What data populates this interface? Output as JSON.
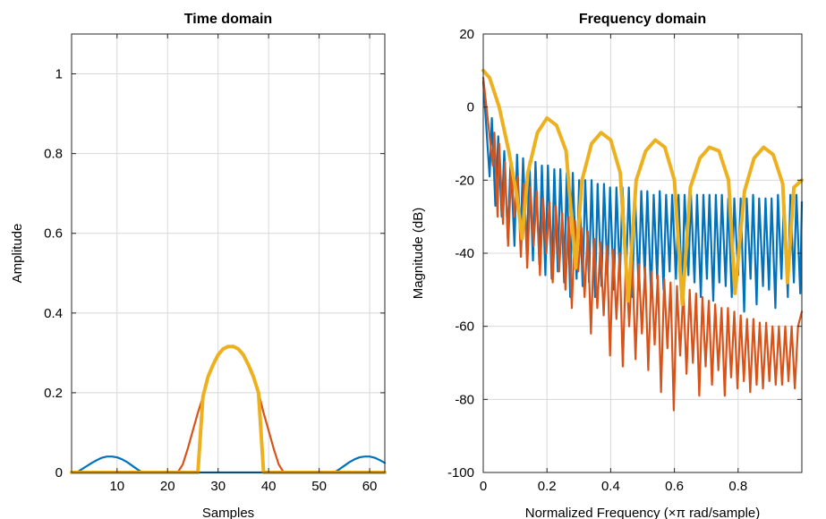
{
  "chart_data": [
    {
      "type": "line",
      "title": "Time domain",
      "xlabel": "Samples",
      "ylabel": "Amplitude",
      "xlim": [
        1,
        63
      ],
      "ylim": [
        0,
        1.1
      ],
      "xticks": [
        10,
        20,
        30,
        40,
        50,
        60
      ],
      "yticks": [
        0,
        0.2,
        0.4,
        0.6,
        0.8,
        1
      ],
      "xtick_labels": [
        "10",
        "20",
        "30",
        "40",
        "50",
        "60"
      ],
      "ytick_labels": [
        "0",
        "0.2",
        "0.4",
        "0.6",
        "0.8",
        "1"
      ],
      "grid": true,
      "series": [
        {
          "color": "#0072BD",
          "x": [
            1,
            2,
            3,
            4,
            5,
            6,
            7,
            8,
            9,
            10,
            11,
            12,
            13,
            14,
            15,
            16,
            17,
            18,
            19,
            20,
            21,
            22,
            23,
            24,
            25,
            26,
            27,
            28,
            29,
            30,
            31,
            32,
            33,
            34,
            35,
            36,
            37,
            38,
            39,
            40,
            41,
            42,
            43,
            44,
            45,
            46,
            47,
            48,
            49,
            50,
            51,
            52,
            53,
            54,
            55,
            56,
            57,
            58,
            59,
            60,
            61,
            62,
            63
          ],
          "y": [
            0,
            0,
            0.008,
            0.016,
            0.024,
            0.031,
            0.037,
            0.04,
            0.04,
            0.038,
            0.033,
            0.026,
            0.017,
            0.008,
            0,
            0,
            0,
            0,
            0,
            0,
            0,
            0,
            0,
            0,
            0,
            0,
            0,
            0,
            0,
            0,
            0,
            0,
            0,
            0,
            0,
            0,
            0,
            0,
            0,
            0,
            0,
            0,
            0,
            0,
            0,
            0,
            0,
            0,
            0,
            0,
            0,
            0,
            0,
            0.008,
            0.017,
            0.026,
            0.033,
            0.038,
            0.04,
            0.04,
            0.037,
            0.031,
            0.024
          ]
        },
        {
          "color": "#D95319",
          "x": [
            1,
            22,
            23,
            24,
            25,
            26,
            27,
            28,
            29,
            30,
            31,
            32,
            33,
            34,
            35,
            36,
            37,
            38,
            39,
            40,
            41,
            42,
            43,
            63
          ],
          "y": [
            0,
            0,
            0.02,
            0.06,
            0.105,
            0.15,
            0.19,
            0.24,
            0.27,
            0.295,
            0.31,
            0.316,
            0.316,
            0.31,
            0.295,
            0.27,
            0.24,
            0.2,
            0.15,
            0.105,
            0.06,
            0.02,
            0,
            0
          ]
        },
        {
          "color": "#EDB120",
          "x": [
            1,
            26,
            27,
            28,
            29,
            30,
            31,
            32,
            33,
            34,
            35,
            36,
            37,
            38,
            39,
            63
          ],
          "y": [
            0,
            0,
            0.19,
            0.24,
            0.27,
            0.295,
            0.31,
            0.316,
            0.316,
            0.31,
            0.295,
            0.27,
            0.24,
            0.2,
            0,
            0
          ]
        }
      ]
    },
    {
      "type": "line",
      "title": "Frequency domain",
      "xlabel": "Normalized Frequency  (×π rad/sample)",
      "ylabel": "Magnitude (dB)",
      "xlim": [
        0,
        1
      ],
      "ylim": [
        -100,
        20
      ],
      "xticks": [
        0,
        0.2,
        0.4,
        0.6,
        0.8
      ],
      "yticks": [
        -100,
        -80,
        -60,
        -40,
        -20,
        0,
        20
      ],
      "xtick_labels": [
        "0",
        "0.2",
        "0.4",
        "0.6",
        "0.8"
      ],
      "ytick_labels": [
        "-100",
        "-80",
        "-60",
        "-40",
        "-20",
        "0",
        "20"
      ],
      "grid": true,
      "series": [
        {
          "color": "#0072BD",
          "x": [
            0.0,
            0.02,
            0.027,
            0.038,
            0.047,
            0.058,
            0.066,
            0.077,
            0.086,
            0.098,
            0.106,
            0.117,
            0.125,
            0.137,
            0.145,
            0.156,
            0.164,
            0.176,
            0.184,
            0.195,
            0.203,
            0.215,
            0.223,
            0.234,
            0.242,
            0.254,
            0.262,
            0.273,
            0.281,
            0.293,
            0.301,
            0.312,
            0.32,
            0.332,
            0.34,
            0.351,
            0.359,
            0.371,
            0.379,
            0.39,
            0.398,
            0.41,
            0.418,
            0.429,
            0.437,
            0.449,
            0.457,
            0.468,
            0.476,
            0.488,
            0.496,
            0.507,
            0.515,
            0.527,
            0.535,
            0.546,
            0.554,
            0.566,
            0.574,
            0.585,
            0.593,
            0.605,
            0.613,
            0.624,
            0.632,
            0.644,
            0.652,
            0.663,
            0.671,
            0.683,
            0.691,
            0.702,
            0.71,
            0.722,
            0.73,
            0.741,
            0.749,
            0.761,
            0.769,
            0.78,
            0.788,
            0.8,
            0.808,
            0.819,
            0.827,
            0.839,
            0.847,
            0.858,
            0.866,
            0.878,
            0.886,
            0.897,
            0.905,
            0.917,
            0.925,
            0.936,
            0.944,
            0.956,
            0.964,
            0.975,
            0.983,
            0.995,
            1.0
          ],
          "y": [
            7,
            -19,
            -3,
            -27,
            -8,
            -30,
            -12,
            -36,
            -14,
            -38,
            -13,
            -37,
            -14,
            -40,
            -15,
            -42,
            -15,
            -43,
            -16,
            -46,
            -16,
            -47,
            -17,
            -45,
            -17,
            -48,
            -18,
            -52,
            -18,
            -47,
            -20,
            -49,
            -20,
            -48,
            -20,
            -52,
            -21,
            -49,
            -21,
            -46,
            -22,
            -50,
            -22,
            -47,
            -22,
            -44,
            -22,
            -52,
            -23,
            -50,
            -23,
            -46,
            -23,
            -52,
            -24,
            -47,
            -23,
            -50,
            -24,
            -45,
            -24,
            -47,
            -24,
            -52,
            -24,
            -46,
            -24,
            -48,
            -24,
            -52,
            -24,
            -47,
            -24,
            -53,
            -24,
            -48,
            -24,
            -49,
            -25,
            -52,
            -25,
            -46,
            -25,
            -56,
            -25,
            -47,
            -24,
            -54,
            -25,
            -49,
            -25,
            -50,
            -25,
            -55,
            -24,
            -47,
            -24,
            -52,
            -24,
            -48,
            -24,
            -51,
            -26
          ]
        },
        {
          "color": "#D95319",
          "x": [
            0.0,
            0.03,
            0.035,
            0.045,
            0.05,
            0.062,
            0.068,
            0.078,
            0.088,
            0.098,
            0.108,
            0.118,
            0.128,
            0.138,
            0.148,
            0.158,
            0.168,
            0.178,
            0.188,
            0.198,
            0.208,
            0.218,
            0.228,
            0.238,
            0.248,
            0.258,
            0.268,
            0.278,
            0.288,
            0.298,
            0.308,
            0.318,
            0.328,
            0.338,
            0.348,
            0.358,
            0.368,
            0.378,
            0.388,
            0.398,
            0.408,
            0.418,
            0.428,
            0.438,
            0.448,
            0.458,
            0.468,
            0.478,
            0.488,
            0.498,
            0.508,
            0.518,
            0.528,
            0.538,
            0.548,
            0.558,
            0.568,
            0.578,
            0.588,
            0.598,
            0.608,
            0.618,
            0.628,
            0.638,
            0.648,
            0.658,
            0.668,
            0.678,
            0.688,
            0.698,
            0.708,
            0.718,
            0.728,
            0.738,
            0.748,
            0.758,
            0.768,
            0.778,
            0.788,
            0.798,
            0.808,
            0.818,
            0.828,
            0.838,
            0.848,
            0.858,
            0.868,
            0.878,
            0.888,
            0.898,
            0.908,
            0.918,
            0.928,
            0.938,
            0.948,
            0.958,
            0.968,
            0.978,
            0.988,
            1.0
          ],
          "y": [
            8,
            -16,
            -7,
            -30,
            -10,
            -32,
            -15,
            -38,
            -17,
            -30,
            -19,
            -41,
            -21,
            -44,
            -22,
            -38,
            -23,
            -46,
            -25,
            -40,
            -26,
            -48,
            -27,
            -45,
            -29,
            -50,
            -30,
            -55,
            -31,
            -45,
            -33,
            -52,
            -34,
            -62,
            -36,
            -55,
            -37,
            -57,
            -38,
            -68,
            -39,
            -58,
            -40,
            -71,
            -41,
            -60,
            -42,
            -69,
            -43,
            -62,
            -44,
            -72,
            -45,
            -65,
            -46,
            -78,
            -47,
            -66,
            -48,
            -83,
            -49,
            -68,
            -50,
            -73,
            -50,
            -70,
            -51,
            -79,
            -52,
            -71,
            -53,
            -76,
            -54,
            -72,
            -55,
            -79,
            -55,
            -74,
            -56,
            -77,
            -57,
            -75,
            -58,
            -78,
            -58,
            -76,
            -59,
            -77,
            -59,
            -75,
            -60,
            -76,
            -60,
            -76,
            -60,
            -75,
            -60,
            -77,
            -60,
            -56
          ]
        },
        {
          "color": "#EDB120",
          "x": [
            0.0,
            0.02,
            0.05,
            0.08,
            0.105,
            0.122,
            0.14,
            0.17,
            0.2,
            0.23,
            0.26,
            0.29,
            0.31,
            0.34,
            0.37,
            0.4,
            0.43,
            0.455,
            0.48,
            0.51,
            0.54,
            0.57,
            0.6,
            0.625,
            0.65,
            0.68,
            0.71,
            0.74,
            0.77,
            0.79,
            0.82,
            0.85,
            0.88,
            0.91,
            0.94,
            0.955,
            0.975,
            1.0
          ],
          "y": [
            10,
            8,
            0,
            -12,
            -24,
            -36,
            -18,
            -7,
            -3,
            -5,
            -12,
            -44,
            -20,
            -10,
            -7,
            -9,
            -18,
            -53,
            -20,
            -12,
            -9,
            -11,
            -20,
            -54,
            -22,
            -14,
            -11,
            -12,
            -20,
            -51,
            -23,
            -14,
            -11,
            -13,
            -21,
            -48,
            -22,
            -20
          ]
        }
      ]
    }
  ]
}
